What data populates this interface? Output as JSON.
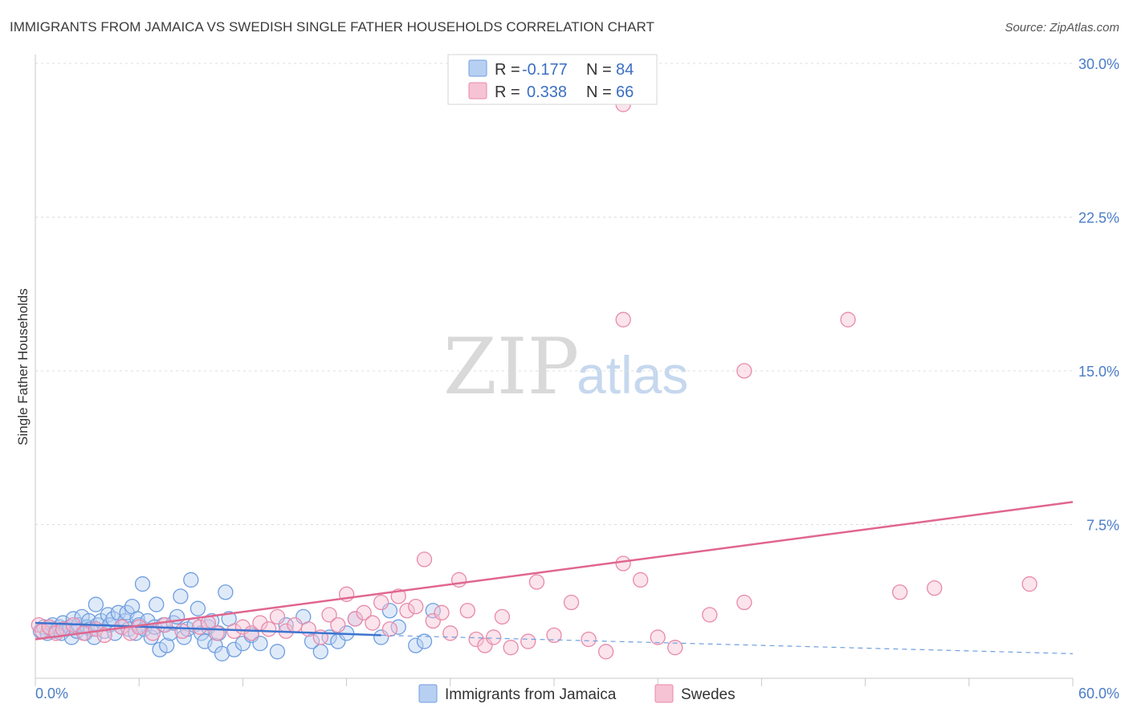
{
  "chart_data": {
    "type": "scatter",
    "title": "IMMIGRANTS FROM JAMAICA VS SWEDISH SINGLE FATHER HOUSEHOLDS CORRELATION CHART",
    "source": "Source: ZipAtlas.com",
    "ylabel": "Single Father Households",
    "xlim": [
      0,
      60
    ],
    "ylim": [
      0,
      31
    ],
    "y_ticks": [
      7.5,
      15.0,
      22.5,
      30.0
    ],
    "y_tick_labels": [
      "7.5%",
      "15.0%",
      "22.5%",
      "30.0%"
    ],
    "x_tick_labels": [
      "0.0%",
      "60.0%"
    ],
    "watermark": {
      "zip": "ZIP",
      "atlas": "atlas"
    },
    "legend": {
      "r_label": "R =",
      "n_label": "N =",
      "entries": [
        {
          "r": "-0.177",
          "n": "84"
        },
        {
          "r": "0.338",
          "n": "66"
        }
      ]
    },
    "series": [
      {
        "name": "Immigrants from Jamaica",
        "color": "#6f9ee0",
        "fill": "#b7d0f2",
        "trend": {
          "x0": 0,
          "y0": 2.7,
          "x1": 20,
          "y1": 2.1,
          "dash_to_x": 60,
          "dash_to_y": 1.2
        },
        "points": [
          [
            0.3,
            2.3
          ],
          [
            0.5,
            2.5
          ],
          [
            0.7,
            2.2
          ],
          [
            0.9,
            2.4
          ],
          [
            1.0,
            2.6
          ],
          [
            1.2,
            2.3
          ],
          [
            1.4,
            2.5
          ],
          [
            1.5,
            2.2
          ],
          [
            1.6,
            2.7
          ],
          [
            1.8,
            2.4
          ],
          [
            2.0,
            2.5
          ],
          [
            2.1,
            2.0
          ],
          [
            2.2,
            2.9
          ],
          [
            2.4,
            2.3
          ],
          [
            2.5,
            2.6
          ],
          [
            2.7,
            3.0
          ],
          [
            2.9,
            2.2
          ],
          [
            3.0,
            2.5
          ],
          [
            3.1,
            2.8
          ],
          [
            3.2,
            2.4
          ],
          [
            3.4,
            2.0
          ],
          [
            3.5,
            3.6
          ],
          [
            3.6,
            2.6
          ],
          [
            3.8,
            2.8
          ],
          [
            4.0,
            2.3
          ],
          [
            4.2,
            3.1
          ],
          [
            4.3,
            2.6
          ],
          [
            4.5,
            2.9
          ],
          [
            4.6,
            2.2
          ],
          [
            4.8,
            3.2
          ],
          [
            5.0,
            2.5
          ],
          [
            5.2,
            2.8
          ],
          [
            5.3,
            3.2
          ],
          [
            5.4,
            2.4
          ],
          [
            5.6,
            3.5
          ],
          [
            5.8,
            2.2
          ],
          [
            5.9,
            2.9
          ],
          [
            6.0,
            2.6
          ],
          [
            6.2,
            4.6
          ],
          [
            6.3,
            2.4
          ],
          [
            6.5,
            2.8
          ],
          [
            6.7,
            2.0
          ],
          [
            6.9,
            2.5
          ],
          [
            7.0,
            3.6
          ],
          [
            7.2,
            1.4
          ],
          [
            7.4,
            2.6
          ],
          [
            7.6,
            1.6
          ],
          [
            7.8,
            2.2
          ],
          [
            8.0,
            2.7
          ],
          [
            8.2,
            3.0
          ],
          [
            8.4,
            4.0
          ],
          [
            8.6,
            2.0
          ],
          [
            8.8,
            2.4
          ],
          [
            9.0,
            4.8
          ],
          [
            9.2,
            2.6
          ],
          [
            9.4,
            3.4
          ],
          [
            9.6,
            2.2
          ],
          [
            9.8,
            1.8
          ],
          [
            10.0,
            2.5
          ],
          [
            10.2,
            2.8
          ],
          [
            10.4,
            1.6
          ],
          [
            10.6,
            2.2
          ],
          [
            10.8,
            1.2
          ],
          [
            11.0,
            4.2
          ],
          [
            11.2,
            2.9
          ],
          [
            11.5,
            1.4
          ],
          [
            12.0,
            1.7
          ],
          [
            12.5,
            2.1
          ],
          [
            13.0,
            1.7
          ],
          [
            14.0,
            1.3
          ],
          [
            14.5,
            2.6
          ],
          [
            15.5,
            3.0
          ],
          [
            16.0,
            1.8
          ],
          [
            16.5,
            1.3
          ],
          [
            17.0,
            2.0
          ],
          [
            17.5,
            1.8
          ],
          [
            18.0,
            2.2
          ],
          [
            18.5,
            2.9
          ],
          [
            20.0,
            2.0
          ],
          [
            20.5,
            3.3
          ],
          [
            21.0,
            2.5
          ],
          [
            22.0,
            1.6
          ],
          [
            22.5,
            1.8
          ],
          [
            23.0,
            3.3
          ]
        ]
      },
      {
        "name": "Swedes",
        "color": "#e88aaa",
        "fill": "#f6c3d4",
        "trend": {
          "x0": 0,
          "y0": 1.9,
          "x1": 60,
          "y1": 8.6
        },
        "points": [
          [
            0.2,
            2.6
          ],
          [
            0.4,
            2.3
          ],
          [
            0.8,
            2.5
          ],
          [
            1.2,
            2.2
          ],
          [
            1.6,
            2.4
          ],
          [
            2.2,
            2.6
          ],
          [
            2.8,
            2.2
          ],
          [
            3.5,
            2.4
          ],
          [
            4.0,
            2.1
          ],
          [
            5.0,
            2.5
          ],
          [
            5.5,
            2.2
          ],
          [
            6.0,
            2.5
          ],
          [
            6.8,
            2.2
          ],
          [
            7.5,
            2.6
          ],
          [
            8.5,
            2.3
          ],
          [
            9.5,
            2.5
          ],
          [
            10.0,
            2.7
          ],
          [
            10.5,
            2.2
          ],
          [
            11.5,
            2.3
          ],
          [
            12.0,
            2.5
          ],
          [
            12.5,
            2.2
          ],
          [
            13.0,
            2.7
          ],
          [
            13.5,
            2.4
          ],
          [
            14.0,
            3.0
          ],
          [
            14.5,
            2.3
          ],
          [
            15.0,
            2.6
          ],
          [
            15.8,
            2.4
          ],
          [
            16.5,
            2.0
          ],
          [
            17.0,
            3.1
          ],
          [
            17.5,
            2.6
          ],
          [
            18.0,
            4.1
          ],
          [
            18.5,
            2.9
          ],
          [
            19.0,
            3.2
          ],
          [
            19.5,
            2.7
          ],
          [
            20.0,
            3.7
          ],
          [
            20.5,
            2.4
          ],
          [
            21.0,
            4.0
          ],
          [
            21.5,
            3.3
          ],
          [
            22.0,
            3.5
          ],
          [
            22.5,
            5.8
          ],
          [
            23.0,
            2.8
          ],
          [
            23.5,
            3.2
          ],
          [
            24.0,
            2.2
          ],
          [
            24.5,
            4.8
          ],
          [
            25.0,
            3.3
          ],
          [
            25.5,
            1.9
          ],
          [
            26.0,
            1.6
          ],
          [
            26.5,
            2.0
          ],
          [
            27.0,
            3.0
          ],
          [
            27.5,
            1.5
          ],
          [
            28.5,
            1.8
          ],
          [
            29.0,
            4.7
          ],
          [
            30.0,
            2.1
          ],
          [
            31.0,
            3.7
          ],
          [
            32.0,
            1.9
          ],
          [
            33.0,
            1.3
          ],
          [
            34.0,
            5.6
          ],
          [
            35.0,
            4.8
          ],
          [
            36.0,
            2.0
          ],
          [
            37.0,
            1.5
          ],
          [
            39.0,
            3.1
          ],
          [
            41.0,
            3.7
          ],
          [
            50.0,
            4.2
          ],
          [
            52.0,
            4.4
          ],
          [
            57.5,
            4.6
          ],
          [
            34.0,
            28.0
          ]
        ],
        "outliers": [
          [
            34.0,
            17.5
          ],
          [
            41.0,
            15.0
          ],
          [
            47.0,
            17.5
          ]
        ]
      }
    ]
  }
}
